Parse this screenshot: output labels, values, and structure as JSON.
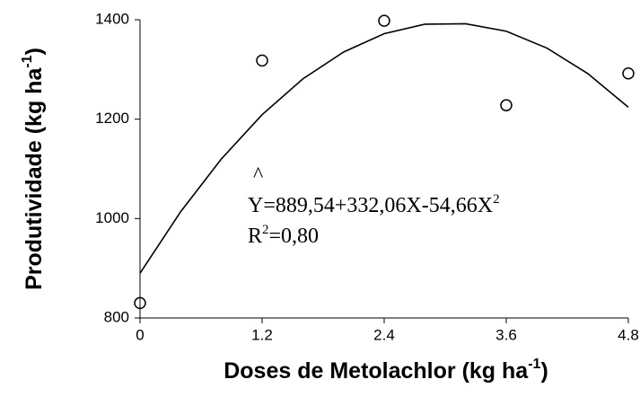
{
  "chart_data": {
    "type": "scatter",
    "xlabel": [
      "Doses de Metolachlor (kg ha",
      "-1",
      ")"
    ],
    "ylabel": [
      "Produtividade (kg ha",
      "-1",
      ")"
    ],
    "hat": "^",
    "equation": [
      "Y=889,54+332,06X-54,66X",
      "2"
    ],
    "r2": [
      "R",
      "2",
      "=0,80"
    ],
    "points": {
      "x": [
        0,
        1.2,
        2.4,
        3.6,
        4.8
      ],
      "values": [
        830,
        1318,
        1398,
        1228,
        1292
      ],
      "color": "#000000"
    },
    "curve": {
      "x": [
        0,
        0.4,
        0.8,
        1.2,
        1.6,
        2.0,
        2.4,
        2.8,
        3.2,
        3.6,
        4.0,
        4.4,
        4.8
      ],
      "values": [
        890,
        1014,
        1120,
        1209,
        1281,
        1335,
        1372,
        1391,
        1392,
        1377,
        1343,
        1292,
        1224
      ],
      "color": "#000000"
    },
    "xlim": [
      0,
      4.8
    ],
    "xticks": [
      0,
      1.2,
      2.4,
      3.6,
      4.8
    ],
    "ylim": [
      800,
      1400
    ],
    "yticks": [
      800,
      1000,
      1200,
      1400
    ],
    "grid": false
  }
}
